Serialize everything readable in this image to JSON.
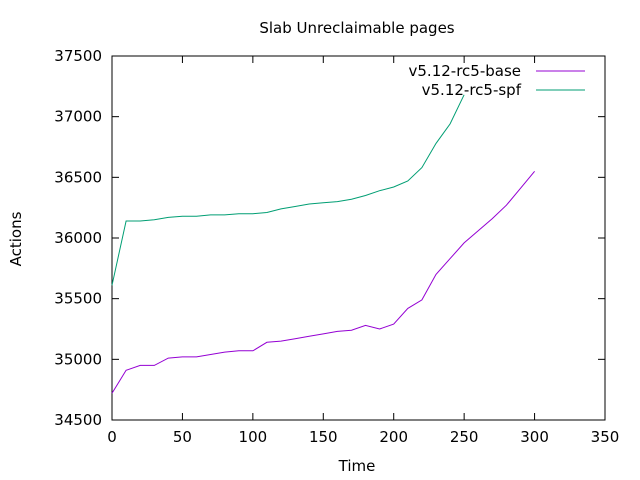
{
  "chart_data": {
    "type": "line",
    "title": "Slab Unreclaimable pages",
    "xlabel": "Time",
    "ylabel": "Actions",
    "xlim": [
      0,
      350
    ],
    "ylim": [
      34500,
      37500
    ],
    "xticks": [
      0,
      50,
      100,
      150,
      200,
      250,
      300,
      350
    ],
    "yticks": [
      34500,
      35000,
      35500,
      36000,
      36500,
      37000,
      37500
    ],
    "grid": false,
    "legend_position": "top-right",
    "series": [
      {
        "name": "v5.12-rc5-base",
        "color": "#9400d3",
        "x": [
          0,
          10,
          20,
          30,
          40,
          50,
          60,
          70,
          80,
          90,
          100,
          110,
          120,
          130,
          140,
          150,
          160,
          170,
          180,
          190,
          200,
          210,
          220,
          230,
          240,
          250,
          260,
          270,
          280,
          290,
          300
        ],
        "y": [
          34720,
          34910,
          34950,
          34950,
          35010,
          35020,
          35020,
          35040,
          35060,
          35070,
          35070,
          35140,
          35150,
          35170,
          35190,
          35210,
          35230,
          35240,
          35280,
          35250,
          35290,
          35420,
          35490,
          35700,
          35830,
          35960,
          36060,
          36160,
          36270,
          36410,
          36550
        ]
      },
      {
        "name": "v5.12-rc5-spf",
        "color": "#009e73",
        "x": [
          0,
          10,
          20,
          30,
          40,
          50,
          60,
          70,
          80,
          90,
          100,
          110,
          120,
          130,
          140,
          150,
          160,
          170,
          180,
          190,
          200,
          210,
          220,
          230,
          240,
          250
        ],
        "y": [
          35610,
          36140,
          36140,
          36150,
          36170,
          36180,
          36180,
          36190,
          36190,
          36200,
          36200,
          36210,
          36240,
          36260,
          36280,
          36290,
          36300,
          36320,
          36350,
          36390,
          36420,
          36470,
          36580,
          36780,
          36940,
          37180
        ]
      }
    ]
  }
}
